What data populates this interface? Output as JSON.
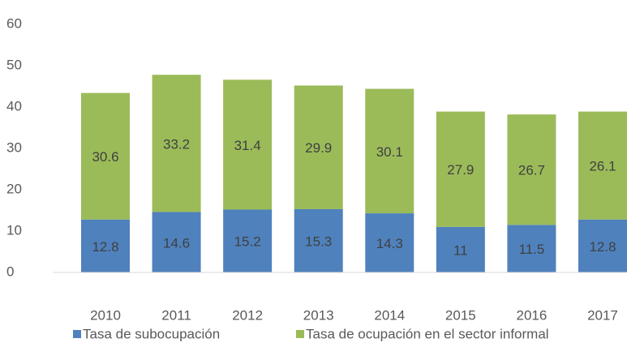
{
  "chart_data": {
    "type": "stacked_bar",
    "categories": [
      "2010",
      "2011",
      "2012",
      "2013",
      "2014",
      "2015",
      "2016",
      "2017"
    ],
    "series": [
      {
        "name": "Tasa de subocupación",
        "color": "#4f81bd",
        "values": [
          12.8,
          14.6,
          15.2,
          15.3,
          14.3,
          11,
          11.5,
          12.8
        ]
      },
      {
        "name": "Tasa de ocupación en el sector informal",
        "color": "#9bbb59",
        "values": [
          30.6,
          33.2,
          31.4,
          29.9,
          30.1,
          27.9,
          26.7,
          26.1
        ]
      }
    ],
    "ylim": [
      0,
      60
    ],
    "yticks": [
      0,
      10,
      20,
      30,
      40,
      50,
      60
    ],
    "grid": false,
    "legend": "bottom"
  }
}
